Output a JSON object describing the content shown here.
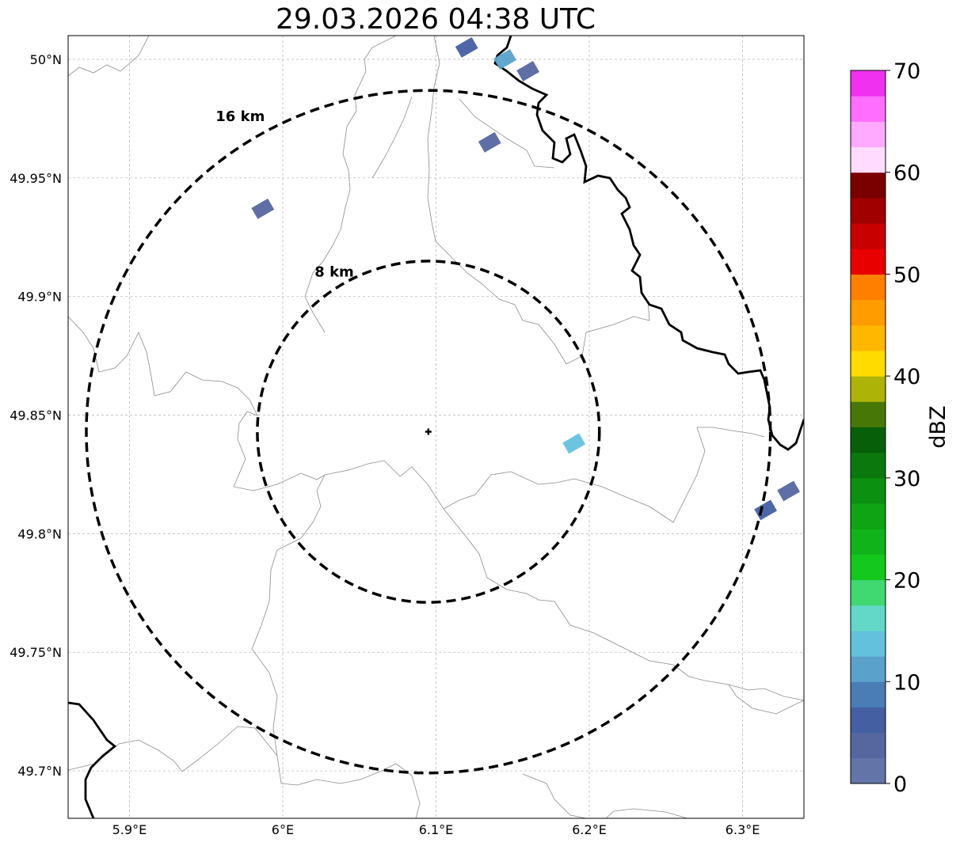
{
  "title": "29.03.2026 04:38 UTC",
  "map": {
    "lon_ticks": [
      {
        "value": 5.9,
        "label": "5.9°E"
      },
      {
        "value": 6.0,
        "label": "6°E"
      },
      {
        "value": 6.1,
        "label": "6.1°E"
      },
      {
        "value": 6.2,
        "label": "6.2°E"
      },
      {
        "value": 6.3,
        "label": "6.3°E"
      }
    ],
    "lat_ticks": [
      {
        "value": 50.0,
        "label": "50°N"
      },
      {
        "value": 49.95,
        "label": "49.95°N"
      },
      {
        "value": 49.9,
        "label": "49.9°N"
      },
      {
        "value": 49.85,
        "label": "49.85°N"
      },
      {
        "value": 49.8,
        "label": "49.8°N"
      },
      {
        "value": 49.75,
        "label": "49.75°N"
      },
      {
        "value": 49.7,
        "label": "49.7°N"
      }
    ],
    "extent": {
      "lon": [
        5.86,
        6.34
      ],
      "lat": [
        49.68,
        50.01
      ]
    },
    "center": {
      "lon": 6.095,
      "lat": 49.843
    },
    "rings": [
      {
        "radius_km": 16,
        "label": "16 km"
      },
      {
        "radius_km": 8,
        "label": "8 km"
      }
    ],
    "gridlines": true
  },
  "colorbar": {
    "unit": "dBZ",
    "min": 0,
    "max": 70,
    "ticks": [
      "0",
      "10",
      "20",
      "30",
      "40",
      "50",
      "60",
      "70"
    ],
    "colors": [
      "#6274a8",
      "#5667a0",
      "#4460a2",
      "#4a7db5",
      "#5aa2cb",
      "#64c1de",
      "#64d8c8",
      "#40d870",
      "#14c81e",
      "#10b41a",
      "#0ea414",
      "#0c9010",
      "#0a780c",
      "#075f0a",
      "#477807",
      "#aeb407",
      "#ffdb00",
      "#ffb700",
      "#ff9c00",
      "#ff7f00",
      "#e80000",
      "#c80000",
      "#a00000",
      "#7a0000",
      "#ffdcff",
      "#ffaaff",
      "#ff6eff",
      "#f032f0"
    ]
  },
  "echoes": [
    {
      "lon": 6.12,
      "lat": 50.005,
      "dbz": 5
    },
    {
      "lon": 6.145,
      "lat": 50.0,
      "dbz": 12
    },
    {
      "lon": 6.16,
      "lat": 49.995,
      "dbz": 4
    },
    {
      "lon": 6.135,
      "lat": 49.965,
      "dbz": 3
    },
    {
      "lon": 5.987,
      "lat": 49.937,
      "dbz": 3
    },
    {
      "lon": 6.19,
      "lat": 49.838,
      "dbz": 14
    },
    {
      "lon": 6.315,
      "lat": 49.81,
      "dbz": 6
    },
    {
      "lon": 6.33,
      "lat": 49.818,
      "dbz": 4
    }
  ]
}
